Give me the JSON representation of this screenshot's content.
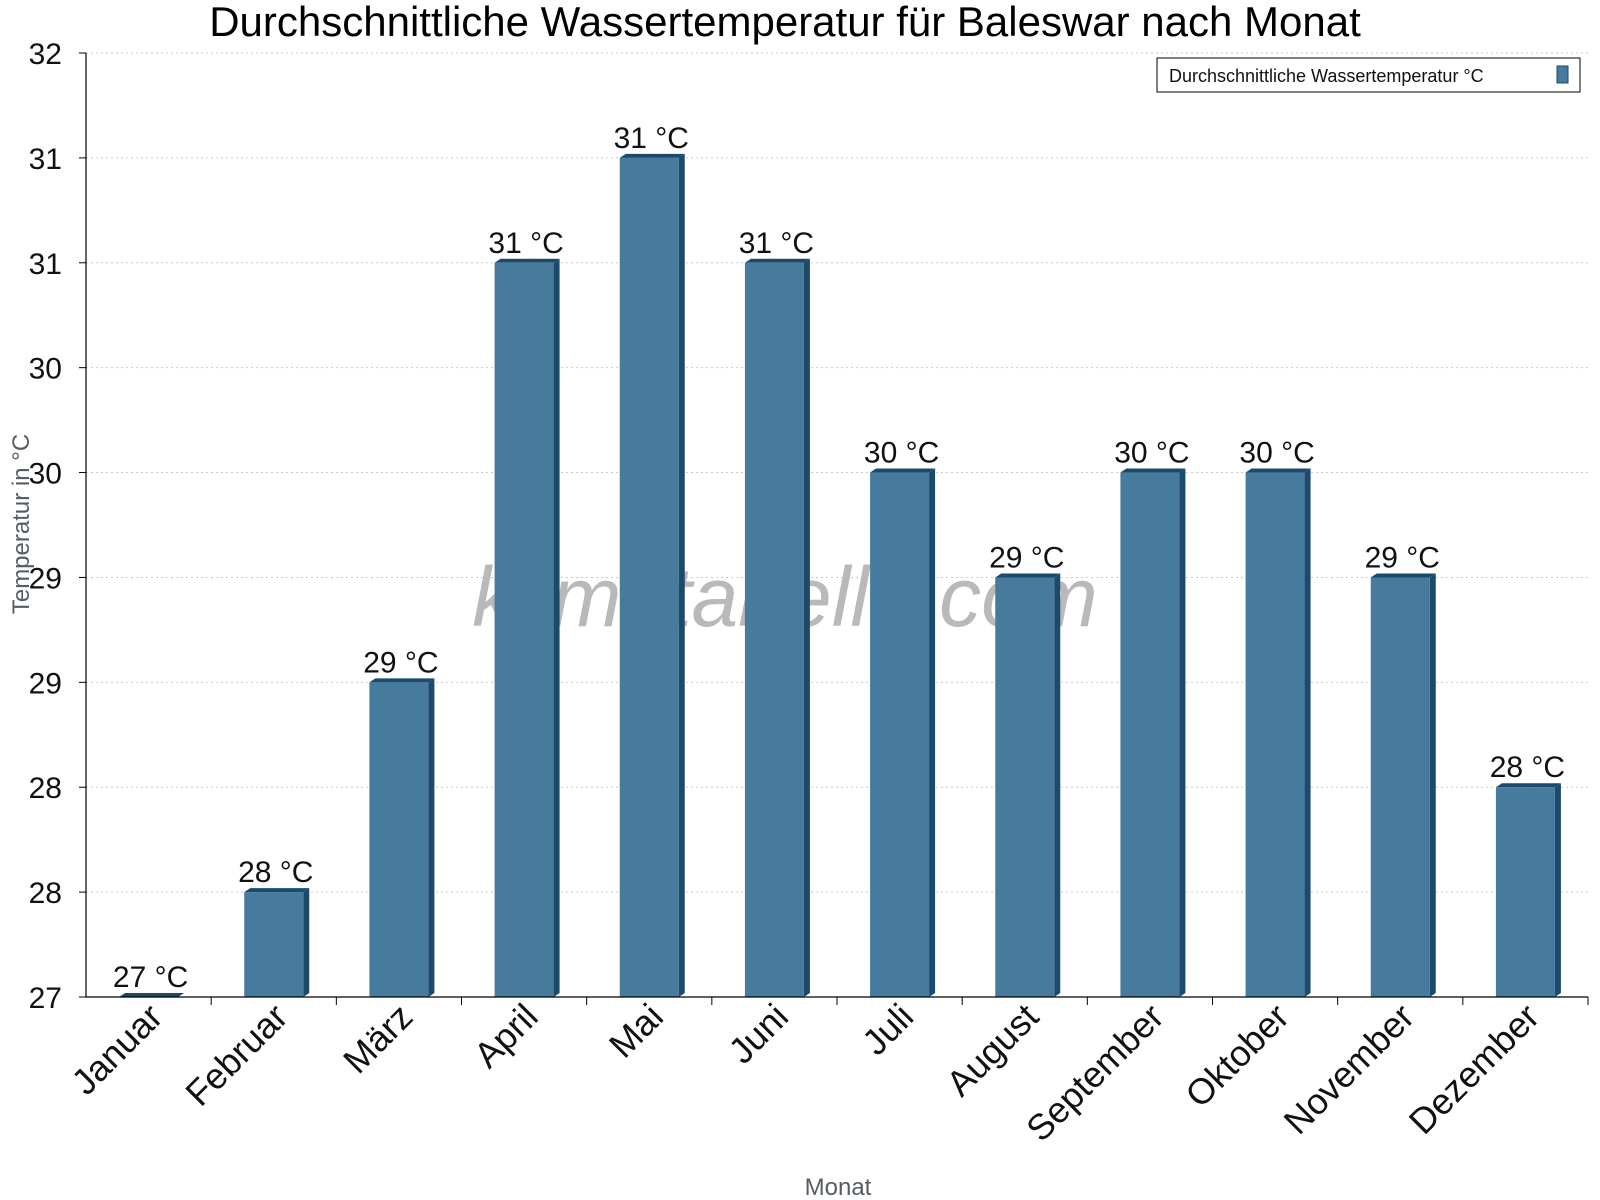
{
  "chart_data": {
    "type": "bar",
    "title": "Durchschnittliche Wassertemperatur für Baleswar nach Monat",
    "xlabel": "Monat",
    "ylabel": "Temperatur in °C",
    "categories": [
      "Januar",
      "Februar",
      "März",
      "April",
      "Mai",
      "Juni",
      "Juli",
      "August",
      "September",
      "Oktober",
      "November",
      "Dezember"
    ],
    "series": [
      {
        "name": "Durchschnittliche Wassertemperatur °C",
        "values": [
          27.0,
          27.5,
          28.5,
          30.5,
          31.0,
          30.5,
          29.5,
          29.0,
          29.5,
          29.5,
          29.0,
          28.0
        ],
        "data_labels": [
          "27 °C",
          "28 °C",
          "29 °C",
          "31 °C",
          "31 °C",
          "31 °C",
          "30 °C",
          "29 °C",
          "30 °C",
          "30 °C",
          "29 °C",
          "28 °C"
        ],
        "color": "#467b9e",
        "side_color": "#1b4a6b"
      }
    ],
    "ylim": [
      27,
      31.5
    ],
    "ytick_values": [
      27,
      27.5,
      28,
      28.5,
      29,
      29.5,
      30,
      30.5,
      31,
      31.5
    ],
    "ytick_labels": [
      "27",
      "28",
      "28",
      "29",
      "29",
      "30",
      "30",
      "31",
      "31",
      "32"
    ],
    "grid": true,
    "legend_position": "top-right"
  },
  "watermark": "klimatabelle.com"
}
